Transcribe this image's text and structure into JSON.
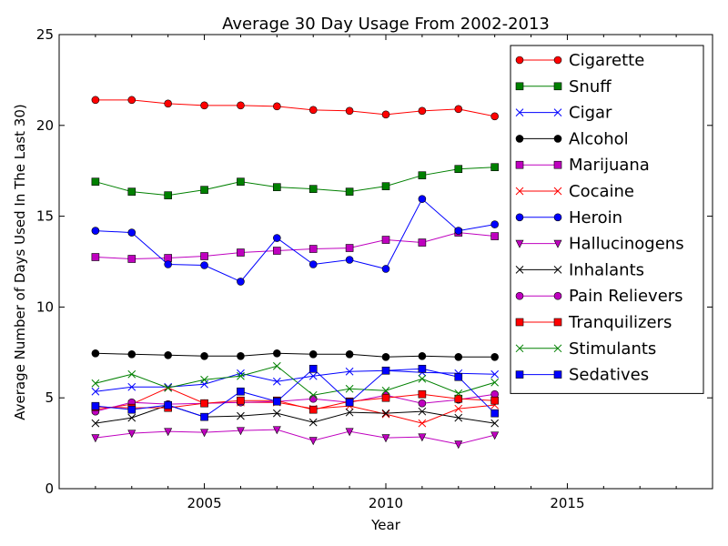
{
  "chart_data": {
    "type": "line",
    "title": "Average 30 Day Usage From 2002-2013",
    "xlabel": "Year",
    "ylabel": "Average Number of Days Used In The Last 30)",
    "xlim": [
      2001,
      2019
    ],
    "ylim": [
      0,
      25
    ],
    "xticks": [
      2005,
      2010,
      2015
    ],
    "yticks": [
      0,
      5,
      10,
      15,
      20,
      25
    ],
    "grid": false,
    "legend_position": "top-right",
    "x": [
      2002,
      2003,
      2004,
      2005,
      2006,
      2007,
      2008,
      2009,
      2010,
      2011,
      2012,
      2013
    ],
    "series": [
      {
        "name": "Cigarette",
        "color": "#ff0000",
        "marker": "circle",
        "values": [
          21.4,
          21.4,
          21.2,
          21.1,
          21.1,
          21.05,
          20.85,
          20.8,
          20.6,
          20.8,
          20.9,
          20.5
        ]
      },
      {
        "name": "Snuff",
        "color": "#008000",
        "marker": "square",
        "values": [
          16.9,
          16.35,
          16.15,
          16.45,
          16.9,
          16.6,
          16.5,
          16.35,
          16.65,
          17.25,
          17.6,
          17.7
        ]
      },
      {
        "name": "Cigar",
        "color": "#0000ff",
        "marker": "x",
        "values": [
          5.35,
          5.6,
          5.6,
          5.75,
          6.35,
          5.9,
          6.2,
          6.45,
          6.5,
          6.4,
          6.35,
          6.3
        ]
      },
      {
        "name": "Alcohol",
        "color": "#000000",
        "marker": "circle",
        "values": [
          7.45,
          7.4,
          7.35,
          7.3,
          7.3,
          7.45,
          7.4,
          7.4,
          7.25,
          7.3,
          7.25,
          7.25
        ]
      },
      {
        "name": "Marijuana",
        "color": "#bf00bf",
        "marker": "square",
        "values": [
          12.75,
          12.65,
          12.7,
          12.8,
          13.0,
          13.1,
          13.2,
          13.25,
          13.7,
          13.55,
          14.1,
          13.9
        ]
      },
      {
        "name": "Cocaine",
        "color": "#ff0000",
        "marker": "x",
        "values": [
          4.35,
          4.65,
          5.55,
          4.7,
          4.75,
          4.75,
          4.4,
          4.55,
          4.1,
          3.6,
          4.4,
          4.6
        ]
      },
      {
        "name": "Heroin",
        "color": "#0000ff",
        "marker": "circle",
        "values": [
          14.2,
          14.1,
          12.35,
          12.3,
          11.4,
          13.8,
          12.35,
          12.6,
          12.1,
          15.95,
          14.2,
          14.55
        ]
      },
      {
        "name": "Hallucinogens",
        "color": "#bf00bf",
        "marker": "triangle-down",
        "values": [
          2.8,
          3.05,
          3.15,
          3.1,
          3.2,
          3.25,
          2.65,
          3.15,
          2.8,
          2.85,
          2.45,
          2.95
        ]
      },
      {
        "name": "Inhalants",
        "color": "#000000",
        "marker": "x",
        "values": [
          3.6,
          3.9,
          4.6,
          3.95,
          4.0,
          4.15,
          3.65,
          4.2,
          4.15,
          4.25,
          3.9,
          3.6
        ]
      },
      {
        "name": "Pain Relievers",
        "color": "#bf00bf",
        "marker": "circle",
        "values": [
          4.25,
          4.75,
          4.65,
          4.7,
          4.75,
          4.8,
          4.95,
          4.75,
          5.15,
          4.7,
          4.9,
          5.2
        ]
      },
      {
        "name": "Tranquilizers",
        "color": "#ff0000",
        "marker": "square",
        "values": [
          4.5,
          4.45,
          4.45,
          4.7,
          4.85,
          4.85,
          4.35,
          4.8,
          5.0,
          5.2,
          4.95,
          4.85
        ]
      },
      {
        "name": "Stimulants",
        "color": "#008000",
        "marker": "x",
        "values": [
          5.8,
          6.3,
          5.55,
          6.0,
          6.2,
          6.75,
          5.15,
          5.5,
          5.4,
          6.05,
          5.25,
          5.85
        ]
      },
      {
        "name": "Sedatives",
        "color": "#0000ff",
        "marker": "square",
        "values": [
          4.55,
          4.35,
          4.6,
          3.95,
          5.35,
          4.8,
          6.6,
          4.75,
          6.5,
          6.6,
          6.15,
          4.15
        ]
      }
    ]
  }
}
